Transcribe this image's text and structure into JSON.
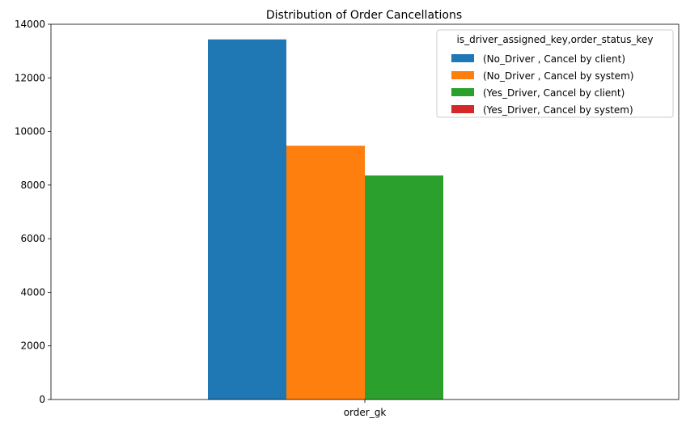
{
  "chart_data": {
    "type": "bar",
    "title": "Distribution of Order Cancellations",
    "xlabel": "",
    "ylabel": "",
    "categories": [
      "order_gk"
    ],
    "ylim": [
      0,
      14000
    ],
    "yticks": [
      0,
      2000,
      4000,
      6000,
      8000,
      10000,
      12000,
      14000
    ],
    "grid": false,
    "legend": {
      "title": "is_driver_assigned_key,order_status_key",
      "placement": "top-right"
    },
    "series": [
      {
        "name": "(No_Driver , Cancel by client)",
        "color": "#1f77b4",
        "values": [
          13435
        ]
      },
      {
        "name": "(No_Driver , Cancel by system)",
        "color": "#ff7f0e",
        "values": [
          9469
        ]
      },
      {
        "name": "(Yes_Driver, Cancel by client)",
        "color": "#2ca02c",
        "values": [
          8360
        ]
      },
      {
        "name": "(Yes_Driver, Cancel by system)",
        "color": "#d62728",
        "values": [
          3
        ]
      }
    ]
  }
}
